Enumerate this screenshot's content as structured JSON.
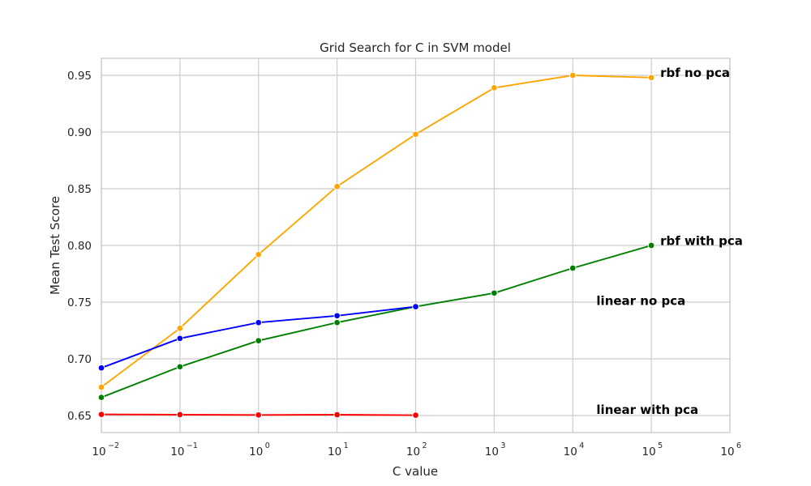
{
  "chart_data": {
    "type": "line",
    "title": "Grid Search for C in SVM model",
    "xlabel": "C value",
    "ylabel": "Mean Test Score",
    "xscale": "log",
    "xlim": [
      0.01,
      1000000
    ],
    "ylim": [
      0.635,
      0.965
    ],
    "grid": true,
    "x_ticks": [
      {
        "base": "10",
        "exp": "−2",
        "value": 0.01
      },
      {
        "base": "10",
        "exp": "−1",
        "value": 0.1
      },
      {
        "base": "10",
        "exp": "0",
        "value": 1
      },
      {
        "base": "10",
        "exp": "1",
        "value": 10
      },
      {
        "base": "10",
        "exp": "2",
        "value": 100
      },
      {
        "base": "10",
        "exp": "3",
        "value": 1000
      },
      {
        "base": "10",
        "exp": "4",
        "value": 10000
      },
      {
        "base": "10",
        "exp": "5",
        "value": 100000
      },
      {
        "base": "10",
        "exp": "6",
        "value": 1000000
      }
    ],
    "y_ticks": [
      "0.65",
      "0.70",
      "0.75",
      "0.80",
      "0.85",
      "0.90",
      "0.95"
    ],
    "series": [
      {
        "color": "#ffa500",
        "x": [
          0.01,
          0.1,
          1,
          10,
          100,
          1000,
          10000,
          100000
        ],
        "y": [
          0.675,
          0.727,
          0.792,
          0.852,
          0.898,
          0.939,
          0.95,
          0.948
        ]
      },
      {
        "color": "#008000",
        "x": [
          0.01,
          0.1,
          1,
          10,
          100,
          1000,
          10000,
          100000
        ],
        "y": [
          0.666,
          0.693,
          0.716,
          0.732,
          0.746,
          0.758,
          0.78,
          0.8
        ]
      },
      {
        "color": "#0000ff",
        "x": [
          0.01,
          0.1,
          1,
          10,
          100
        ],
        "y": [
          0.692,
          0.718,
          0.732,
          0.738,
          0.746
        ]
      },
      {
        "color": "#ff0000",
        "x": [
          0.01,
          0.1,
          1,
          10,
          100
        ],
        "y": [
          0.651,
          0.6508,
          0.6505,
          0.6507,
          0.6503
        ]
      }
    ],
    "annotations": [
      {
        "text": "rbf no pca",
        "x": 130000,
        "y": 0.952
      },
      {
        "text": "rbf with pca",
        "x": 130000,
        "y": 0.804
      },
      {
        "text": "linear no pca",
        "x": 20000,
        "y": 0.751
      },
      {
        "text": "linear with pca",
        "x": 20000,
        "y": 0.655
      }
    ]
  }
}
